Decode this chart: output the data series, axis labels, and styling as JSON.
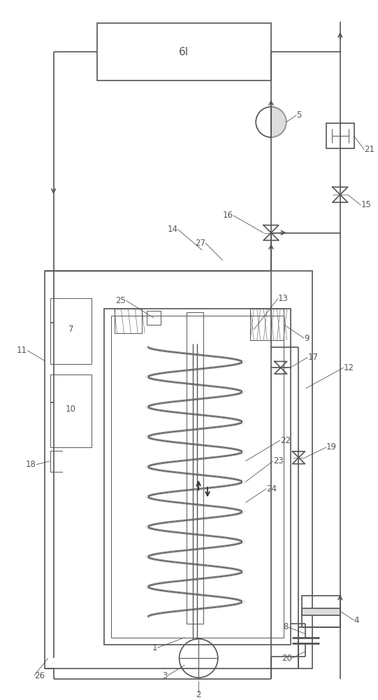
{
  "bg_color": "#ffffff",
  "lc": "#555555",
  "lw": 1.2,
  "tlw": 0.7
}
